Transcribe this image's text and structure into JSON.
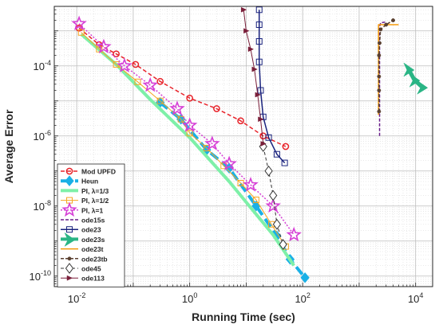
{
  "chart_data": {
    "type": "line",
    "xlabel": "Running Time (sec)",
    "ylabel": "Average Error",
    "xscale": "log",
    "yscale": "log",
    "xlim": [
      0.004,
      20000
    ],
    "ylim": [
      5e-11,
      0.005
    ],
    "grid": true,
    "legend_position": "bottom-left",
    "x_ticks": [
      {
        "value": 0.01,
        "base": "10",
        "exp": "-2"
      },
      {
        "value": 1,
        "base": "10",
        "exp": "0"
      },
      {
        "value": 100,
        "base": "10",
        "exp": "2"
      },
      {
        "value": 10000,
        "base": "10",
        "exp": "4"
      }
    ],
    "y_ticks": [
      {
        "value": 1e-10,
        "base": "10",
        "exp": "-10"
      },
      {
        "value": 1e-08,
        "base": "10",
        "exp": "-8"
      },
      {
        "value": 1e-06,
        "base": "10",
        "exp": "-6"
      },
      {
        "value": 0.0001,
        "base": "10",
        "exp": "-4"
      }
    ],
    "series": [
      {
        "name": "Mod UPFD",
        "color": "#e8232a",
        "dash": "5,3",
        "width": 1.5,
        "marker": "circle",
        "x": [
          0.011,
          0.025,
          0.05,
          0.11,
          0.3,
          1.0,
          3.0,
          8.0,
          20,
          50
        ],
        "y": [
          0.0012,
          0.0004,
          0.00022,
          0.00011,
          3.6e-05,
          1.2e-05,
          6e-06,
          2.7e-06,
          1e-06,
          5e-07
        ]
      },
      {
        "name": "Heun",
        "color": "#1ab0e6",
        "dash": "12,6",
        "width": 4,
        "marker": "diamond",
        "x": [
          0.3,
          0.7,
          2.0,
          5.0,
          15,
          35,
          60,
          110
        ],
        "y": [
          9e-06,
          3e-06,
          4e-07,
          1.2e-07,
          1e-08,
          1.4e-09,
          3e-10,
          9e-11
        ]
      },
      {
        "name": "PI, λ=1/3",
        "color": "#7ef0a8",
        "dash": "",
        "width": 4,
        "marker": "none",
        "x": [
          0.012,
          0.05,
          0.2,
          1.0,
          5.0,
          30,
          70
        ],
        "y": [
          0.0008,
          0.00011,
          1.1e-05,
          9e-07,
          5e-08,
          1.5e-09,
          2e-10
        ]
      },
      {
        "name": "PI, λ=1/2",
        "color": "#f5a623",
        "dash": "",
        "width": 1,
        "marker": "square",
        "x": [
          0.012,
          0.025,
          0.05,
          0.12,
          0.3,
          0.7,
          1.0,
          2.0,
          4.0,
          8.0,
          15,
          28,
          50
        ],
        "y": [
          0.0009,
          0.0003,
          0.00011,
          3.5e-05,
          1e-05,
          3e-06,
          1.2e-06,
          4.5e-07,
          1.4e-07,
          4.5e-08,
          1.5e-08,
          3e-09,
          7e-10
        ]
      },
      {
        "name": "PI, λ=1",
        "color": "#d63fd6",
        "dash": "2,2",
        "width": 1.5,
        "marker": "star",
        "x": [
          0.011,
          0.03,
          0.07,
          0.2,
          0.6,
          1.0,
          2.5,
          5.0,
          12,
          30,
          70
        ],
        "y": [
          0.0016,
          0.00035,
          0.0001,
          2.8e-05,
          6e-06,
          2e-06,
          6e-07,
          1.6e-07,
          4e-08,
          1e-08,
          1.5e-09
        ]
      },
      {
        "name": "ode15s",
        "color": "#6a1f8c",
        "dash": "4,2",
        "width": 1.5,
        "marker": "none",
        "x": [
          2300,
          2300,
          2300,
          2400,
          3000
        ],
        "y": [
          1e-06,
          5e-05,
          0.0013,
          0.0017,
          0.0018
        ]
      },
      {
        "name": "ode23",
        "color": "#1a237e",
        "dash": "",
        "width": 1.5,
        "marker": "square",
        "x": [
          17,
          17,
          17,
          17,
          18,
          20,
          25,
          35,
          48
        ],
        "y": [
          0.004,
          0.0015,
          0.0005,
          0.00013,
          2e-05,
          3.5e-06,
          9e-07,
          3e-07,
          1.7e-07
        ]
      },
      {
        "name": "ode23s",
        "color": "#2ab585",
        "dash": "",
        "width": 5,
        "marker": "arrow",
        "x": [
          7500,
          9500,
          13000
        ],
        "y": [
          8e-05,
          4e-05,
          2.5e-05
        ]
      },
      {
        "name": "ode23t",
        "color": "#f59a0a",
        "dash": "",
        "width": 1.5,
        "marker": "none",
        "x": [
          2200,
          2200,
          2200,
          3500,
          5000
        ],
        "y": [
          4e-06,
          0.0001,
          0.0015,
          0.0015,
          0.0015
        ]
      },
      {
        "name": "ode23tb",
        "color": "#5a4030",
        "dash": "4,2",
        "width": 1.5,
        "marker": "dot",
        "x": [
          2250,
          2250,
          2250,
          2250,
          2300,
          2400,
          3000,
          4000
        ],
        "y": [
          5e-06,
          2e-05,
          5e-05,
          0.0002,
          0.00045,
          0.0011,
          0.0015,
          0.002
        ]
      },
      {
        "name": "ode45",
        "color": "#333333",
        "dash": "4,3",
        "width": 1,
        "marker": "diamond-open",
        "x": [
          20,
          25,
          30,
          35,
          45
        ],
        "y": [
          5e-07,
          1e-07,
          2e-08,
          3e-09,
          8e-10
        ]
      },
      {
        "name": "ode113",
        "color": "#7a1f3a",
        "dash": "",
        "width": 1,
        "marker": "triangle",
        "x": [
          9,
          10,
          12,
          14,
          16,
          18,
          20
        ],
        "y": [
          0.004,
          0.001,
          0.0003,
          8e-05,
          1.5e-05,
          3e-06,
          6e-07
        ]
      }
    ]
  }
}
